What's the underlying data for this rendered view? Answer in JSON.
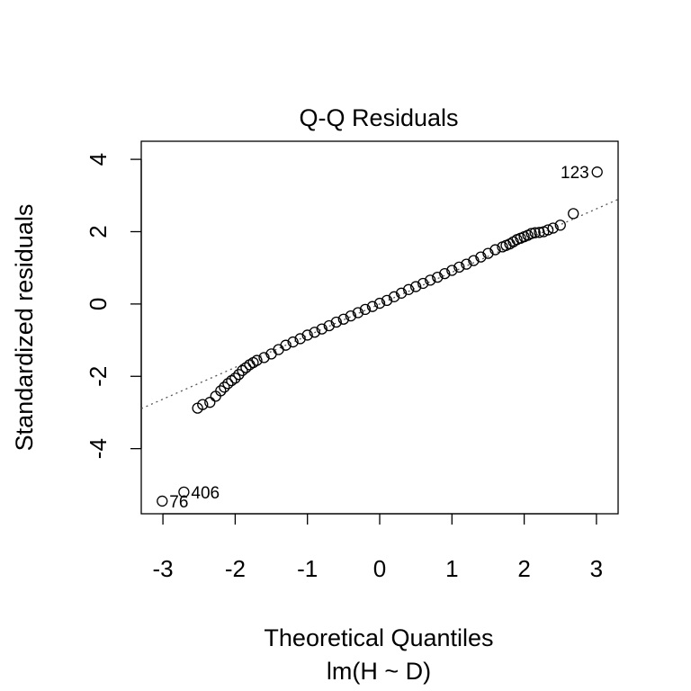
{
  "chart_data": {
    "type": "scatter",
    "title": "Q-Q Residuals",
    "xlabel": "Theoretical Quantiles",
    "sublabel": "lm(H ~ D)",
    "ylabel": "Standardized residuals",
    "xlim": [
      -3.3,
      3.3
    ],
    "ylim": [
      -5.8,
      4.5
    ],
    "x_ticks": [
      -3,
      -2,
      -1,
      0,
      1,
      2,
      3
    ],
    "x_tick_labels": [
      "-3",
      "-2",
      "-1",
      "0",
      "1",
      "2",
      "3"
    ],
    "y_ticks": [
      -4,
      -2,
      0,
      2,
      4
    ],
    "y_tick_labels": [
      "-4",
      "-2",
      "0",
      "2",
      "4"
    ],
    "grid": false,
    "reference_line": {
      "slope": 0.877,
      "intercept": 0.0
    },
    "labeled_points": [
      {
        "label": "123",
        "x": 3.01,
        "y": 3.65,
        "side": "left"
      },
      {
        "label": "406",
        "x": -2.71,
        "y": -5.2,
        "side": "right"
      },
      {
        "label": "76",
        "x": -3.01,
        "y": -5.45,
        "side": "right"
      }
    ],
    "points": [
      [
        2.68,
        2.5
      ],
      [
        2.5,
        2.18
      ],
      [
        2.4,
        2.1
      ],
      [
        2.33,
        2.05
      ],
      [
        2.27,
        2.0
      ],
      [
        2.21,
        1.98
      ],
      [
        2.15,
        1.97
      ],
      [
        2.1,
        1.95
      ],
      [
        2.05,
        1.9
      ],
      [
        2.0,
        1.86
      ],
      [
        1.95,
        1.82
      ],
      [
        1.9,
        1.78
      ],
      [
        1.85,
        1.72
      ],
      [
        1.8,
        1.66
      ],
      [
        1.75,
        1.62
      ],
      [
        1.7,
        1.58
      ],
      [
        1.6,
        1.5
      ],
      [
        1.5,
        1.4
      ],
      [
        1.4,
        1.3
      ],
      [
        1.3,
        1.2
      ],
      [
        1.2,
        1.1
      ],
      [
        1.1,
        1.02
      ],
      [
        1.0,
        0.93
      ],
      [
        0.9,
        0.84
      ],
      [
        0.8,
        0.74
      ],
      [
        0.7,
        0.66
      ],
      [
        0.6,
        0.57
      ],
      [
        0.5,
        0.48
      ],
      [
        0.4,
        0.4
      ],
      [
        0.3,
        0.3
      ],
      [
        0.2,
        0.2
      ],
      [
        0.1,
        0.1
      ],
      [
        0.0,
        0.02
      ],
      [
        -0.1,
        -0.07
      ],
      [
        -0.2,
        -0.15
      ],
      [
        -0.3,
        -0.24
      ],
      [
        -0.4,
        -0.33
      ],
      [
        -0.5,
        -0.42
      ],
      [
        -0.6,
        -0.5
      ],
      [
        -0.7,
        -0.6
      ],
      [
        -0.8,
        -0.69
      ],
      [
        -0.9,
        -0.78
      ],
      [
        -1.0,
        -0.86
      ],
      [
        -1.1,
        -0.96
      ],
      [
        -1.2,
        -1.05
      ],
      [
        -1.3,
        -1.14
      ],
      [
        -1.4,
        -1.26
      ],
      [
        -1.5,
        -1.38
      ],
      [
        -1.6,
        -1.48
      ],
      [
        -1.7,
        -1.56
      ],
      [
        -1.75,
        -1.62
      ],
      [
        -1.8,
        -1.68
      ],
      [
        -1.85,
        -1.76
      ],
      [
        -1.9,
        -1.84
      ],
      [
        -1.95,
        -1.95
      ],
      [
        -2.0,
        -2.05
      ],
      [
        -2.05,
        -2.12
      ],
      [
        -2.1,
        -2.2
      ],
      [
        -2.15,
        -2.3
      ],
      [
        -2.2,
        -2.4
      ],
      [
        -2.27,
        -2.55
      ],
      [
        -2.35,
        -2.72
      ],
      [
        -2.45,
        -2.78
      ],
      [
        -2.52,
        -2.88
      ]
    ]
  }
}
